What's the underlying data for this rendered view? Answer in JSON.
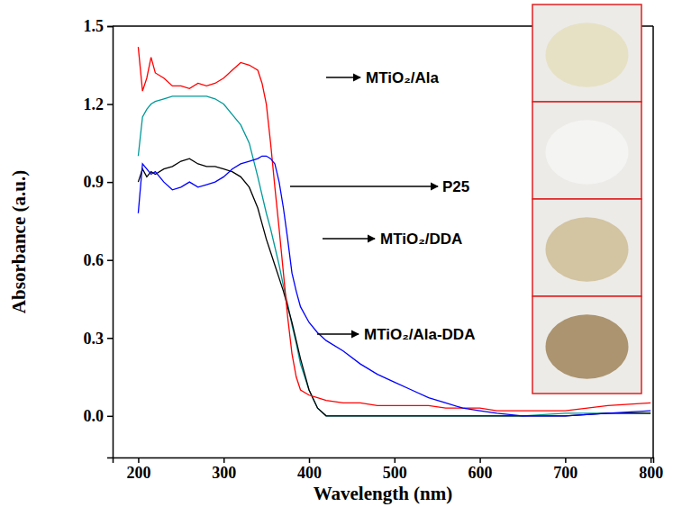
{
  "chart_data": {
    "type": "line",
    "x_label": "Wavelength (nm)",
    "y_label": "Absorbance (a.u.)",
    "xlim": [
      170,
      803
    ],
    "ylim": [
      -0.16,
      1.5
    ],
    "xticks": [
      200,
      300,
      400,
      500,
      600,
      700,
      800
    ],
    "yticks": [
      {
        "value": 0,
        "label": "0.0"
      },
      {
        "value": 0.3,
        "label": "0.3"
      },
      {
        "value": 0.6,
        "label": "0.6"
      },
      {
        "value": 0.9,
        "label": "0.9"
      },
      {
        "value": 1.2,
        "label": "1.2"
      },
      {
        "value": 1.5,
        "label": "1.5"
      }
    ],
    "grid": false,
    "x": [
      200,
      205,
      210,
      215,
      220,
      230,
      240,
      250,
      260,
      270,
      280,
      290,
      300,
      310,
      320,
      330,
      340,
      345,
      350,
      355,
      360,
      365,
      370,
      375,
      380,
      385,
      390,
      400,
      410,
      420,
      440,
      460,
      480,
      500,
      520,
      540,
      560,
      580,
      600,
      620,
      650,
      700,
      750,
      800
    ],
    "series": [
      {
        "name": "MTiO₂/Ala",
        "color": "#ff0000",
        "values": [
          1.42,
          1.25,
          1.3,
          1.38,
          1.32,
          1.3,
          1.27,
          1.27,
          1.26,
          1.28,
          1.27,
          1.28,
          1.3,
          1.33,
          1.36,
          1.35,
          1.33,
          1.28,
          1.2,
          1.05,
          0.88,
          0.72,
          0.55,
          0.38,
          0.24,
          0.15,
          0.1,
          0.08,
          0.07,
          0.06,
          0.05,
          0.05,
          0.04,
          0.04,
          0.04,
          0.04,
          0.03,
          0.03,
          0.03,
          0.02,
          0.02,
          0.02,
          0.04,
          0.05
        ]
      },
      {
        "name": "P25",
        "color": "#000000",
        "values": [
          0.9,
          0.95,
          0.92,
          0.94,
          0.93,
          0.95,
          0.96,
          0.98,
          0.99,
          0.97,
          0.96,
          0.96,
          0.95,
          0.94,
          0.92,
          0.88,
          0.8,
          0.74,
          0.68,
          0.63,
          0.58,
          0.53,
          0.48,
          0.42,
          0.36,
          0.29,
          0.22,
          0.1,
          0.03,
          0,
          0,
          0,
          0,
          0,
          0,
          0,
          0,
          0,
          0,
          0,
          0,
          0,
          0.01,
          0.01
        ]
      },
      {
        "name": "MTiO₂/DDA",
        "color": "#009999",
        "values": [
          1.0,
          1.15,
          1.18,
          1.2,
          1.21,
          1.22,
          1.23,
          1.23,
          1.23,
          1.23,
          1.23,
          1.22,
          1.2,
          1.16,
          1.12,
          1.05,
          0.92,
          0.85,
          0.78,
          0.72,
          0.65,
          0.58,
          0.5,
          0.43,
          0.35,
          0.28,
          0.2,
          0.1,
          0.03,
          0,
          0,
          0,
          0,
          0,
          0,
          0,
          0,
          0,
          0,
          0,
          0,
          0.01,
          0.01,
          0.01
        ]
      },
      {
        "name": "MTiO₂/Ala-DDA",
        "color": "#0000ff",
        "values": [
          0.78,
          0.97,
          0.95,
          0.93,
          0.94,
          0.9,
          0.87,
          0.88,
          0.9,
          0.88,
          0.89,
          0.9,
          0.92,
          0.95,
          0.97,
          0.98,
          0.99,
          1.0,
          1.0,
          0.99,
          0.97,
          0.9,
          0.8,
          0.68,
          0.55,
          0.48,
          0.42,
          0.36,
          0.32,
          0.29,
          0.25,
          0.2,
          0.16,
          0.13,
          0.1,
          0.07,
          0.05,
          0.03,
          0.02,
          0.01,
          0,
          0,
          0.01,
          0.02
        ]
      }
    ]
  }
}
